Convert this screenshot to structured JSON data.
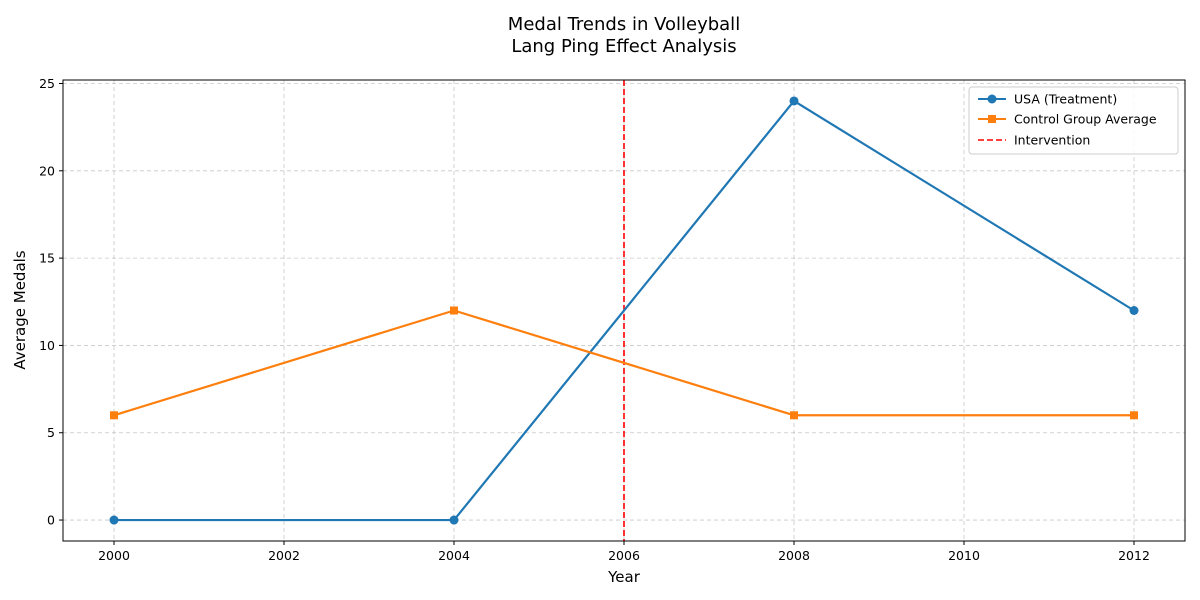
{
  "chart_data": {
    "type": "line",
    "title": [
      "Medal Trends in Volleyball",
      "Lang Ping Effect Analysis"
    ],
    "xlabel": "Year",
    "ylabel": "Average Medals",
    "xlim": [
      1999.4,
      2012.6
    ],
    "ylim": [
      -1.2,
      25.2
    ],
    "x_ticks": [
      2000,
      2002,
      2004,
      2006,
      2008,
      2010,
      2012
    ],
    "y_ticks": [
      0,
      5,
      10,
      15,
      20,
      25
    ],
    "grid": true,
    "legend_position": "top-right",
    "series": [
      {
        "name": "USA (Treatment)",
        "color": "#1f77b4",
        "marker": "circle",
        "x": [
          2000,
          2004,
          2008,
          2012
        ],
        "y": [
          0,
          0,
          24,
          12
        ]
      },
      {
        "name": "Control Group Average",
        "color": "#ff7f0e",
        "marker": "square",
        "x": [
          2000,
          2004,
          2008,
          2012
        ],
        "y": [
          6,
          12,
          6,
          6
        ]
      }
    ],
    "vline": {
      "name": "Intervention",
      "x": 2006,
      "color": "#ff0000",
      "style": "dashed"
    }
  }
}
